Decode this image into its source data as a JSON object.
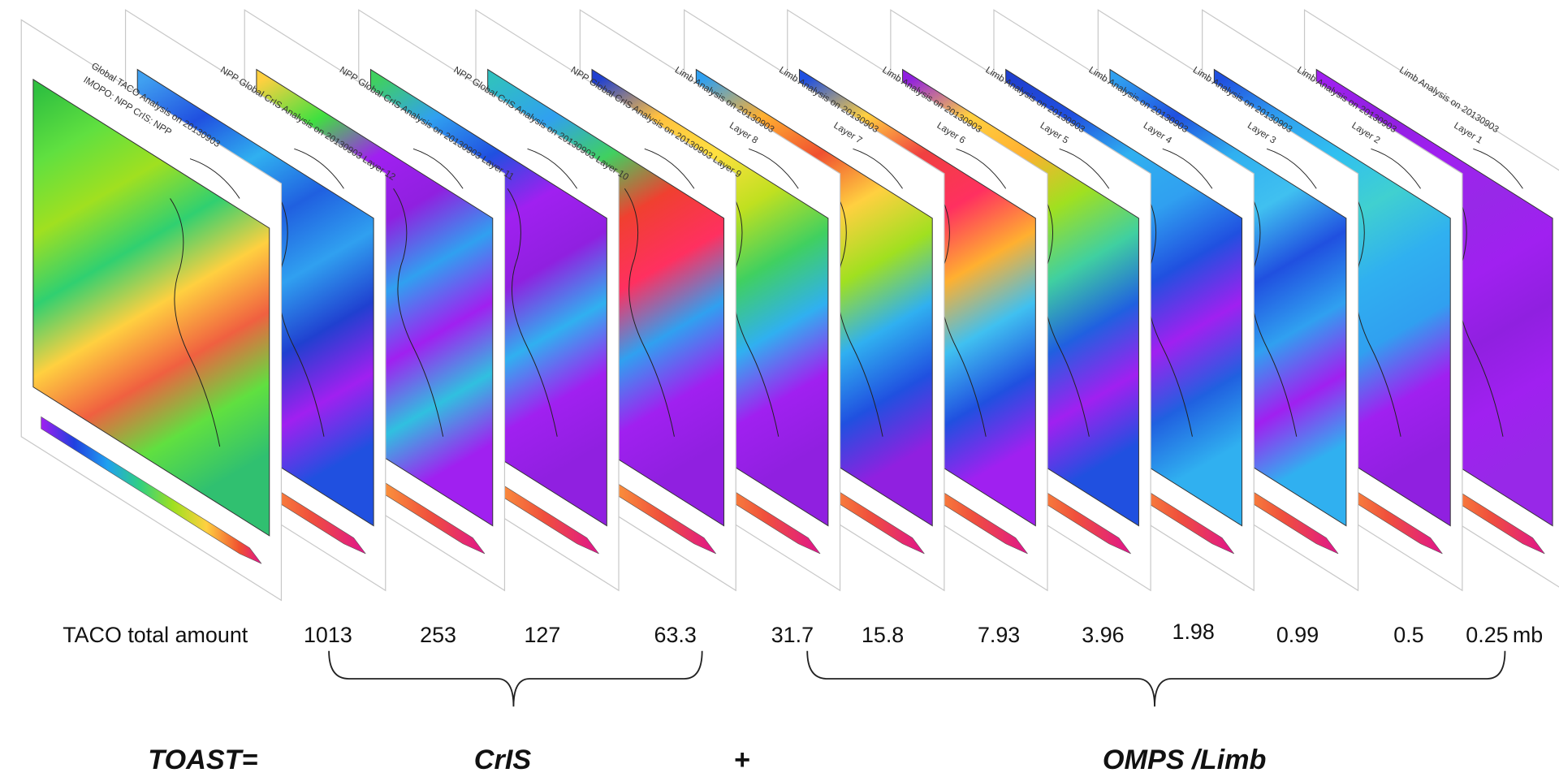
{
  "panels": [
    {
      "title": "Global TACO Analysis on 20130903",
      "subtitle": "IMOPO: NPP CrIS: NPP"
    },
    {
      "title": "NPP Global CrIS Analysis on 20130903 Layer 12"
    },
    {
      "title": "NPP Global CrIS Analysis on 20130903 Layer 11"
    },
    {
      "title": "NPP Global CrIS Analysis on 20130903 Layer 10"
    },
    {
      "title": "NPP Global CrIS Analysis on 20130903 Layer 9"
    },
    {
      "title": "Limb Analysis on 20130903",
      "subtitle": "Layer 8"
    },
    {
      "title": "Limb Analysis on 20130903",
      "subtitle": "Layer 7"
    },
    {
      "title": "Limb Analysis on 20130903",
      "subtitle": "Layer 6"
    },
    {
      "title": "Limb Analysis on 20130903",
      "subtitle": "Layer 5"
    },
    {
      "title": "Limb Analysis on 20130903",
      "subtitle": "Layer 4"
    },
    {
      "title": "Limb Analysis on 20130903",
      "subtitle": "Layer 3"
    },
    {
      "title": "Limb Analysis on 20130903",
      "subtitle": "Layer 2"
    },
    {
      "title": "Limb Analysis on 20130903",
      "subtitle": "Layer 1"
    }
  ],
  "pressures": {
    "label": "TACO total amount",
    "levels": [
      1013,
      253,
      127,
      63.3,
      31.7,
      15.8,
      7.93,
      3.96,
      1.98,
      0.99,
      0.5,
      0.25
    ],
    "unit": "mb"
  },
  "equation": {
    "lhs": "TOAST=",
    "cris": "CrIS",
    "plus": "+",
    "omps": "OMPS /Limb"
  }
}
